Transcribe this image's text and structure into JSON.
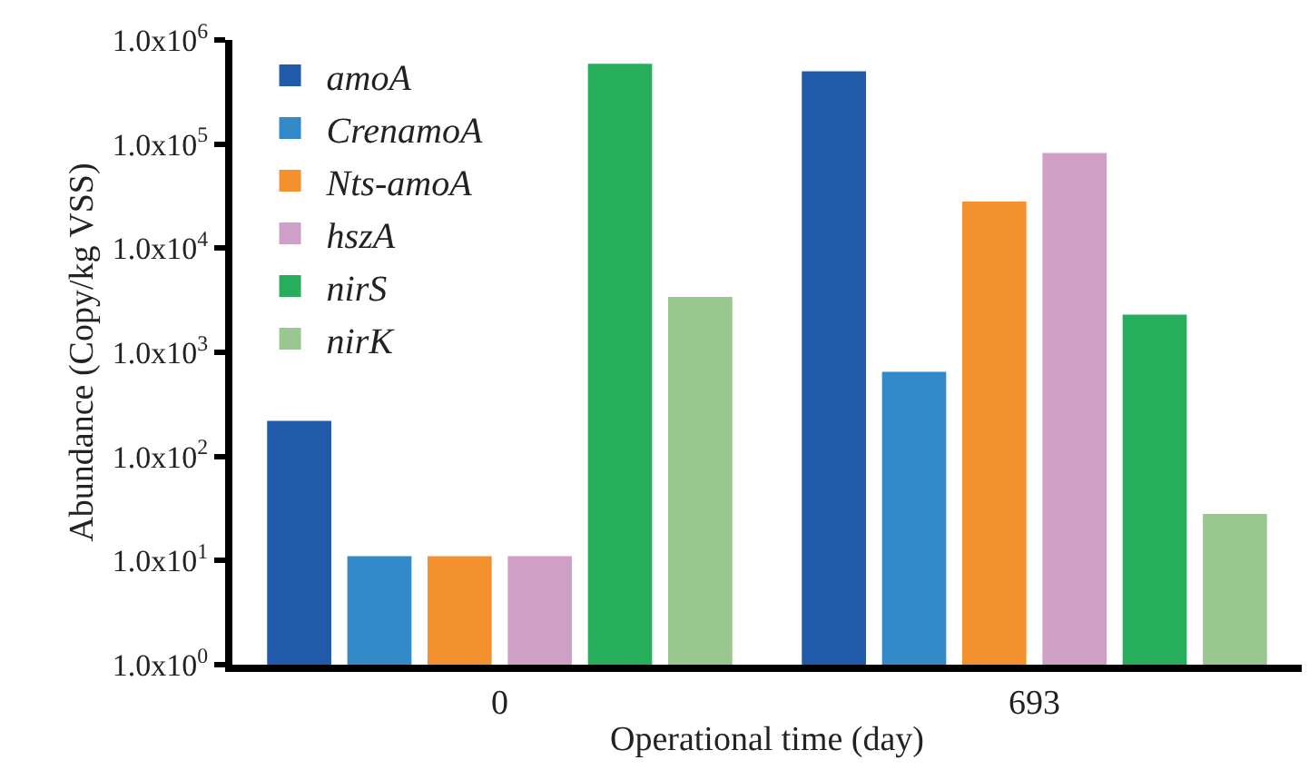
{
  "chart_data": {
    "type": "bar",
    "xlabel": "Operational time (day)",
    "ylabel": "Abundance (Copy/kg VSS)",
    "categories": [
      "0",
      "693"
    ],
    "series": [
      {
        "name": "amoA",
        "color": "#215aa8",
        "values": [
          220,
          500000
        ]
      },
      {
        "name": "CrenamoA",
        "color": "#3489c9",
        "values": [
          11,
          650
        ]
      },
      {
        "name": "Nts-amoA",
        "color": "#f4912f",
        "values": [
          11,
          28000
        ]
      },
      {
        "name": "hszA",
        "color": "#d09fc6",
        "values": [
          11,
          82000
        ]
      },
      {
        "name": "nirS",
        "color": "#26ae5d",
        "values": [
          590000,
          2300
        ]
      },
      {
        "name": "nirK",
        "color": "#9ac78f",
        "values": [
          3400,
          28
        ]
      }
    ],
    "log": true,
    "ylim": [
      1,
      1000000
    ],
    "yticks": [
      {
        "value": 1,
        "label": "1.0x10$^{0}$"
      },
      {
        "value": 10,
        "label": "1.0x10$^{1}$"
      },
      {
        "value": 100,
        "label": "1.0x10$^{2}$"
      },
      {
        "value": 1000,
        "label": "1.0x10$^{3}$"
      },
      {
        "value": 10000,
        "label": "1.0x10$^{4}$"
      },
      {
        "value": 100000,
        "label": "1.0x10$^{5}$"
      },
      {
        "value": 1000000,
        "label": "1.0x10$^{6}$"
      }
    ],
    "grid": false,
    "legend": "top left"
  }
}
